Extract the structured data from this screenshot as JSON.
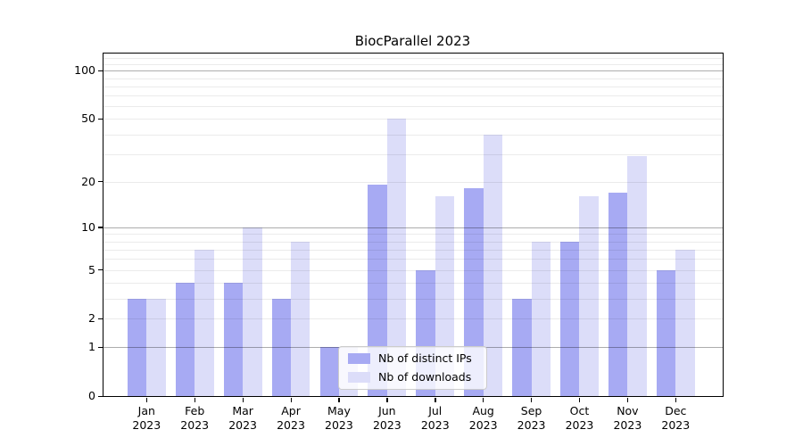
{
  "figure": {
    "title": "BiocParallel 2023"
  },
  "chart_data": {
    "type": "bar",
    "title": "BiocParallel 2023",
    "categories": [
      "Jan 2023",
      "Feb 2023",
      "Mar 2023",
      "Apr 2023",
      "May 2023",
      "Jun 2023",
      "Jul 2023",
      "Aug 2023",
      "Sep 2023",
      "Oct 2023",
      "Nov 2023",
      "Dec 2023"
    ],
    "series": [
      {
        "name": "Nb of distinct IPs",
        "color": "#a7aaf3",
        "values": [
          3,
          4,
          4,
          3,
          1,
          19,
          5,
          18,
          3,
          8,
          17,
          5
        ]
      },
      {
        "name": "Nb of downloads",
        "color": "#dcddf9",
        "values": [
          3,
          7,
          10,
          8,
          1,
          50,
          16,
          40,
          8,
          16,
          29,
          7
        ]
      }
    ],
    "xlabel": "",
    "ylabel": "",
    "yscale": "log1p",
    "ylim": [
      0,
      129
    ],
    "y_ticks": [
      0,
      1,
      2,
      5,
      10,
      20,
      50,
      100
    ],
    "grid": {
      "orientation": "horizontal",
      "major_values": [
        1,
        10,
        100
      ],
      "minor_values": [
        2,
        3,
        4,
        5,
        6,
        7,
        8,
        9,
        20,
        30,
        40,
        50,
        60,
        70,
        80,
        90,
        110,
        120
      ]
    },
    "legend": {
      "position": "inside lower-center",
      "items": [
        "Nb of distinct IPs",
        "Nb of downloads"
      ]
    }
  }
}
